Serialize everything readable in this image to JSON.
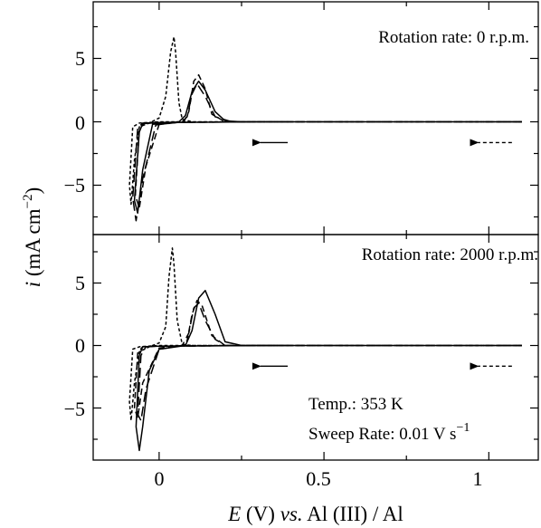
{
  "chart_data": [
    {
      "type": "line",
      "panel": "top",
      "annotation": "Rotation rate: 0 r.p.m.",
      "xlim": [
        -0.2,
        1.15
      ],
      "ylim": [
        -8.5,
        8.5
      ],
      "yticks": [
        5,
        0,
        -5
      ],
      "yticklabels": [
        "5",
        "0",
        "−5"
      ],
      "grid": false,
      "legend": "none",
      "series": [
        {
          "style": "solid",
          "points": [
            [
              1.1,
              0
            ],
            [
              0.4,
              0
            ],
            [
              0.25,
              0
            ],
            [
              0.2,
              0.08
            ],
            [
              0.17,
              0.8
            ],
            [
              0.14,
              2.5
            ],
            [
              0.12,
              3.2
            ],
            [
              0.1,
              2.4
            ],
            [
              0.08,
              0.5
            ],
            [
              0.06,
              0
            ],
            [
              -0.02,
              -0.2
            ],
            [
              -0.05,
              -3.8
            ],
            [
              -0.065,
              -7.2
            ],
            [
              -0.075,
              -6.2
            ],
            [
              -0.06,
              -0.8
            ],
            [
              -0.05,
              -0.15
            ],
            [
              0,
              -0.05
            ],
            [
              0.3,
              0
            ],
            [
              0.4,
              0
            ]
          ]
        },
        {
          "style": "long-dash",
          "points": [
            [
              1.1,
              0
            ],
            [
              0.4,
              0
            ],
            [
              0.22,
              0
            ],
            [
              0.17,
              0.4
            ],
            [
              0.14,
              2.0
            ],
            [
              0.115,
              3.0
            ],
            [
              0.1,
              2.2
            ],
            [
              0.085,
              0.4
            ],
            [
              0.07,
              0
            ],
            [
              -0.01,
              -0.25
            ],
            [
              -0.05,
              -4.5
            ],
            [
              -0.07,
              -7.8
            ],
            [
              -0.08,
              -6.0
            ],
            [
              -0.065,
              -0.5
            ],
            [
              -0.05,
              -0.1
            ],
            [
              0,
              -0.05
            ],
            [
              0.3,
              0
            ],
            [
              0.4,
              0
            ]
          ]
        },
        {
          "style": "medium-dash",
          "points": [
            [
              1.1,
              0
            ],
            [
              0.4,
              0
            ],
            [
              0.2,
              0
            ],
            [
              0.16,
              0.6
            ],
            [
              0.14,
              2.6
            ],
            [
              0.12,
              3.7
            ],
            [
              0.105,
              3.2
            ],
            [
              0.09,
              0.8
            ],
            [
              0.075,
              0
            ],
            [
              0,
              -0.2
            ],
            [
              -0.04,
              -3.5
            ],
            [
              -0.06,
              -6.8
            ],
            [
              -0.072,
              -5.8
            ],
            [
              -0.06,
              -0.6
            ],
            [
              -0.045,
              -0.1
            ],
            [
              0,
              -0.05
            ],
            [
              0.3,
              0
            ],
            [
              0.4,
              0
            ]
          ]
        },
        {
          "style": "short-dash",
          "points": [
            [
              1.1,
              0
            ],
            [
              0.35,
              0
            ],
            [
              0.1,
              0
            ],
            [
              0.07,
              0.2
            ],
            [
              0.06,
              1.5
            ],
            [
              0.05,
              5.5
            ],
            [
              0.045,
              6.7
            ],
            [
              0.035,
              5.5
            ],
            [
              0.02,
              2.0
            ],
            [
              0.0,
              0.3
            ],
            [
              -0.03,
              -0.1
            ],
            [
              -0.06,
              -0.4
            ],
            [
              -0.075,
              -3.0
            ],
            [
              -0.085,
              -6.5
            ],
            [
              -0.09,
              -5.0
            ],
            [
              -0.08,
              -0.4
            ],
            [
              -0.06,
              -0.1
            ],
            [
              0,
              0
            ],
            [
              0.3,
              0
            ],
            [
              0.35,
              0
            ]
          ]
        }
      ]
    },
    {
      "type": "line",
      "panel": "bottom",
      "annotation": "Rotation rate: 2000 r.p.m.",
      "xlabel_parts": [
        "E",
        " (V) ",
        "vs.",
        " Al (III) / Al"
      ],
      "xlim": [
        -0.2,
        1.15
      ],
      "ylim": [
        -9.0,
        9.0
      ],
      "xticks": [
        0,
        0.5,
        1
      ],
      "xticklabels": [
        "0",
        "0.5",
        "1"
      ],
      "yticks": [
        5,
        0,
        -5
      ],
      "yticklabels": [
        "5",
        "0",
        "−5"
      ],
      "grid": false,
      "legend": "none",
      "series": [
        {
          "style": "solid",
          "points": [
            [
              1.1,
              0
            ],
            [
              0.4,
              0
            ],
            [
              0.25,
              0
            ],
            [
              0.2,
              0.3
            ],
            [
              0.17,
              2.5
            ],
            [
              0.14,
              4.4
            ],
            [
              0.12,
              3.8
            ],
            [
              0.1,
              1.2
            ],
            [
              0.08,
              0
            ],
            [
              0,
              -0.3
            ],
            [
              -0.03,
              -2.0
            ],
            [
              -0.05,
              -6.5
            ],
            [
              -0.06,
              -8.4
            ],
            [
              -0.07,
              -6.5
            ],
            [
              -0.06,
              -0.8
            ],
            [
              -0.05,
              -0.1
            ],
            [
              0,
              -0.05
            ],
            [
              0.3,
              0
            ],
            [
              0.4,
              0
            ]
          ]
        },
        {
          "style": "long-dash",
          "points": [
            [
              1.1,
              0
            ],
            [
              0.4,
              0
            ],
            [
              0.2,
              0
            ],
            [
              0.17,
              0.5
            ],
            [
              0.14,
              2.0
            ],
            [
              0.12,
              3.4
            ],
            [
              0.105,
              3.0
            ],
            [
              0.09,
              1.0
            ],
            [
              0.07,
              0
            ],
            [
              0,
              -0.3
            ],
            [
              -0.04,
              -3.5
            ],
            [
              -0.055,
              -6.0
            ],
            [
              -0.065,
              -5.5
            ],
            [
              -0.055,
              -0.8
            ],
            [
              -0.04,
              -0.1
            ],
            [
              0,
              -0.05
            ],
            [
              0.3,
              0
            ],
            [
              0.4,
              0
            ]
          ]
        },
        {
          "style": "medium-dash",
          "points": [
            [
              1.1,
              0
            ],
            [
              0.4,
              0
            ],
            [
              0.2,
              0
            ],
            [
              0.16,
              0.8
            ],
            [
              0.13,
              3.2
            ],
            [
              0.115,
              3.6
            ],
            [
              0.1,
              2.5
            ],
            [
              0.085,
              0.4
            ],
            [
              0.07,
              0
            ],
            [
              0,
              -0.2
            ],
            [
              -0.05,
              -3.0
            ],
            [
              -0.065,
              -5.8
            ],
            [
              -0.075,
              -5.0
            ],
            [
              -0.065,
              -0.6
            ],
            [
              -0.05,
              -0.1
            ],
            [
              0,
              -0.05
            ],
            [
              0.3,
              0
            ],
            [
              0.4,
              0
            ]
          ]
        },
        {
          "style": "short-dash",
          "points": [
            [
              1.1,
              0
            ],
            [
              0.35,
              0
            ],
            [
              0.1,
              0
            ],
            [
              0.07,
              0.1
            ],
            [
              0.055,
              2.0
            ],
            [
              0.045,
              6.5
            ],
            [
              0.04,
              7.8
            ],
            [
              0.03,
              5.5
            ],
            [
              0.02,
              1.5
            ],
            [
              0,
              0.2
            ],
            [
              -0.03,
              -0.1
            ],
            [
              -0.06,
              -0.5
            ],
            [
              -0.075,
              -3.0
            ],
            [
              -0.085,
              -6.0
            ],
            [
              -0.09,
              -4.5
            ],
            [
              -0.08,
              -0.3
            ],
            [
              -0.06,
              -0.1
            ],
            [
              0,
              0
            ],
            [
              0.3,
              0
            ],
            [
              0.35,
              0
            ]
          ]
        }
      ],
      "notes": [
        "Temp.: 353 K",
        "Sweep Rate: 0.01 V s"
      ],
      "notes_superscript": "−1"
    }
  ],
  "ylabel_parts": [
    "i",
    " (mA cm",
    "−2",
    ")"
  ],
  "sweep_arrows": [
    {
      "panel": "top",
      "style": "solid",
      "from_x": 0.39,
      "to_x": 0.28,
      "y": -0.35
    },
    {
      "panel": "top",
      "style": "dashed",
      "from_x": 1.07,
      "to_x": 0.94,
      "y": -0.35
    },
    {
      "panel": "bottom",
      "style": "solid",
      "from_x": 0.39,
      "to_x": 0.28,
      "y": -0.35
    },
    {
      "panel": "bottom",
      "style": "dashed",
      "from_x": 1.07,
      "to_x": 0.94,
      "y": -0.35
    }
  ],
  "colors": {
    "ink": "#000000",
    "background": "#ffffff"
  }
}
